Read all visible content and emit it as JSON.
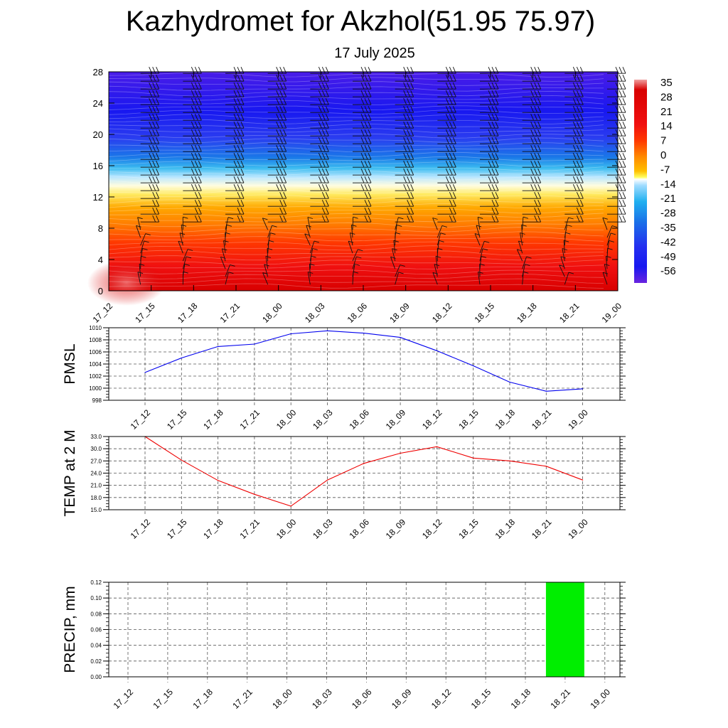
{
  "header": {
    "title": "Kazhydromet for Akzhol(51.95 75.97)",
    "subtitle": "17 July 2025"
  },
  "time_labels": [
    "17_12",
    "17_15",
    "17_18",
    "17_21",
    "18_00",
    "18_03",
    "18_06",
    "18_09",
    "18_12",
    "18_15",
    "18_18",
    "18_21",
    "19_00"
  ],
  "colorbar": {
    "labels": [
      "35",
      "28",
      "21",
      "14",
      "7",
      "0",
      "-7",
      "-14",
      "-21",
      "-28",
      "-35",
      "-42",
      "-49",
      "-56"
    ]
  },
  "chart_data": [
    {
      "type": "heatmap",
      "title": "",
      "xlabel": "",
      "ylabel": "",
      "x": [
        "17_12",
        "17_15",
        "17_18",
        "17_21",
        "18_00",
        "18_03",
        "18_06",
        "18_09",
        "18_12",
        "18_15",
        "18_18",
        "18_21",
        "19_00"
      ],
      "y_ticks": [
        0,
        4,
        8,
        12,
        16,
        20,
        24,
        28
      ],
      "ylim": [
        0,
        28
      ],
      "color_levels": [
        35,
        28,
        21,
        14,
        7,
        0,
        -7,
        -14,
        -21,
        -28,
        -35,
        -42,
        -49,
        -56
      ],
      "temperature_profile": [
        {
          "height": 0,
          "value": 30
        },
        {
          "height": 4,
          "value": 22
        },
        {
          "height": 8,
          "value": 10
        },
        {
          "height": 12,
          "value": -8
        },
        {
          "height": 13.5,
          "value": -18
        },
        {
          "height": 16,
          "value": -34
        },
        {
          "height": 20,
          "value": -50
        },
        {
          "height": 24,
          "value": -56
        },
        {
          "height": 28,
          "value": -58
        }
      ],
      "overlay": "wind barbs"
    },
    {
      "type": "line",
      "ylabel": "PMSL",
      "x": [
        "17_12",
        "17_15",
        "17_18",
        "17_21",
        "18_00",
        "18_03",
        "18_06",
        "18_09",
        "18_12",
        "18_15",
        "18_18",
        "18_21",
        "19_00"
      ],
      "series": [
        {
          "values": [
            1002.6,
            1005.0,
            1006.9,
            1007.3,
            1009.0,
            1009.5,
            1009.1,
            1008.4,
            1006.2,
            1003.7,
            1001.0,
            999.5,
            999.9
          ],
          "color": "#0000ee"
        }
      ],
      "y_ticks": [
        "998",
        "1000",
        "1002",
        "1004",
        "1006",
        "1008",
        "1010"
      ],
      "ylim": [
        998,
        1010
      ],
      "grid": true
    },
    {
      "type": "line",
      "ylabel": "TEMP at 2 M",
      "x": [
        "17_12",
        "17_15",
        "17_18",
        "17_21",
        "18_00",
        "18_03",
        "18_06",
        "18_09",
        "18_12",
        "18_15",
        "18_18",
        "18_21",
        "19_00"
      ],
      "series": [
        {
          "values": [
            33.0,
            27.2,
            22.2,
            18.8,
            15.9,
            22.3,
            26.4,
            28.9,
            30.5,
            27.7,
            27.0,
            25.7,
            22.3
          ],
          "color": "#ee0000"
        }
      ],
      "y_ticks": [
        "15.0",
        "18.0",
        "21.0",
        "24.0",
        "27.0",
        "30.0",
        "33.0"
      ],
      "ylim": [
        15,
        33
      ],
      "grid": true
    },
    {
      "type": "bar",
      "ylabel": "PRECIP, mm",
      "x": [
        "17_12",
        "17_15",
        "17_18",
        "17_21",
        "18_00",
        "18_03",
        "18_06",
        "18_09",
        "18_12",
        "18_15",
        "18_18",
        "18_21",
        "19_00"
      ],
      "series": [
        {
          "values": [
            0,
            0,
            0,
            0,
            0,
            0,
            0,
            0,
            0,
            0,
            0,
            0.12,
            0
          ],
          "color": "#00ee00"
        }
      ],
      "y_ticks": [
        "0.00",
        "0.02",
        "0.04",
        "0.06",
        "0.08",
        "0.10",
        "0.12"
      ],
      "ylim": [
        0,
        0.12
      ],
      "grid": true
    }
  ]
}
